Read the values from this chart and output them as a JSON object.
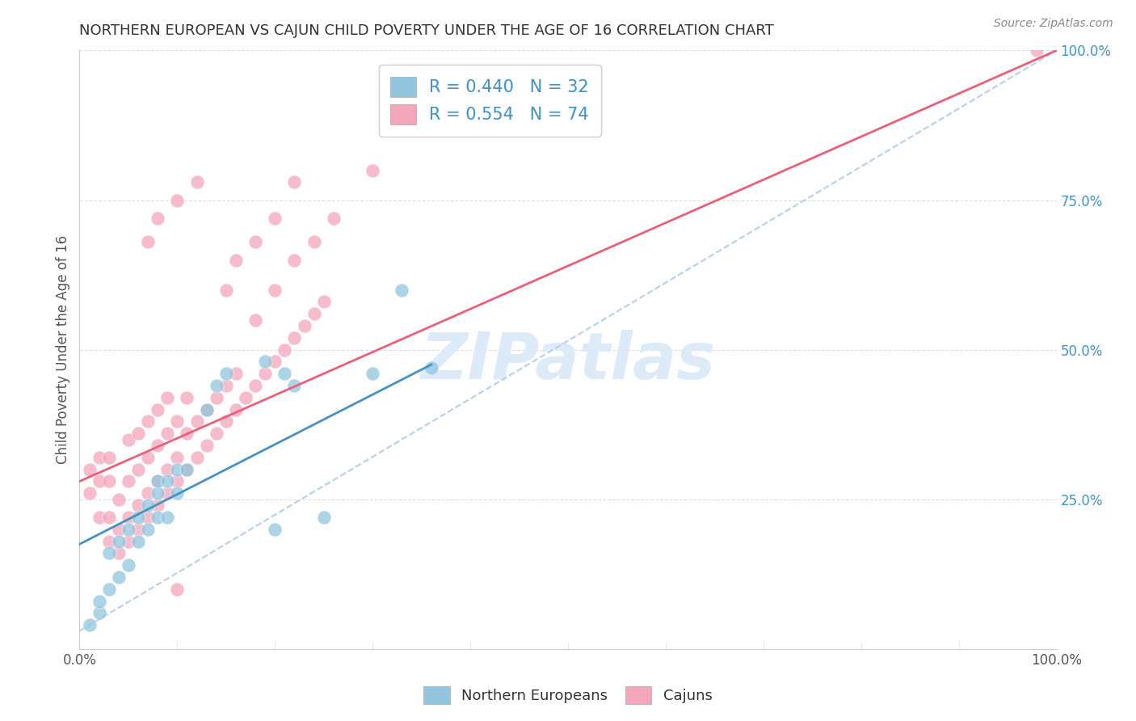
{
  "title": "NORTHERN EUROPEAN VS CAJUN CHILD POVERTY UNDER THE AGE OF 16 CORRELATION CHART",
  "source": "Source: ZipAtlas.com",
  "ylabel": "Child Poverty Under the Age of 16",
  "xlim": [
    0,
    1
  ],
  "ylim": [
    0,
    1
  ],
  "ytick_positions": [
    0.25,
    0.5,
    0.75,
    1.0
  ],
  "blue_R": 0.44,
  "blue_N": 32,
  "pink_R": 0.554,
  "pink_N": 74,
  "blue_color": "#92c5de",
  "pink_color": "#f4a6bb",
  "blue_line_color": "#4393c3",
  "pink_line_color": "#e8607a",
  "dashed_line_color": "#b8cfe8",
  "watermark_color": "#ddeaf8",
  "title_color": "#333333",
  "legend_text_color": "#4393c3",
  "right_label_color": "#4393c3",
  "grid_color": "#dddddd",
  "blue_scatter_x": [
    0.01,
    0.02,
    0.02,
    0.03,
    0.03,
    0.04,
    0.04,
    0.05,
    0.05,
    0.06,
    0.06,
    0.07,
    0.07,
    0.08,
    0.08,
    0.08,
    0.09,
    0.09,
    0.1,
    0.1,
    0.11,
    0.13,
    0.14,
    0.15,
    0.19,
    0.2,
    0.21,
    0.22,
    0.25,
    0.3,
    0.33,
    0.36
  ],
  "blue_scatter_y": [
    0.04,
    0.06,
    0.08,
    0.1,
    0.16,
    0.12,
    0.18,
    0.14,
    0.2,
    0.18,
    0.22,
    0.2,
    0.24,
    0.22,
    0.26,
    0.28,
    0.22,
    0.28,
    0.26,
    0.3,
    0.3,
    0.4,
    0.44,
    0.46,
    0.48,
    0.2,
    0.46,
    0.44,
    0.22,
    0.46,
    0.6,
    0.47
  ],
  "pink_scatter_x": [
    0.01,
    0.01,
    0.02,
    0.02,
    0.02,
    0.03,
    0.03,
    0.03,
    0.03,
    0.04,
    0.04,
    0.04,
    0.05,
    0.05,
    0.05,
    0.05,
    0.06,
    0.06,
    0.06,
    0.06,
    0.07,
    0.07,
    0.07,
    0.07,
    0.08,
    0.08,
    0.08,
    0.08,
    0.09,
    0.09,
    0.09,
    0.09,
    0.1,
    0.1,
    0.1,
    0.11,
    0.11,
    0.11,
    0.12,
    0.12,
    0.13,
    0.13,
    0.14,
    0.14,
    0.15,
    0.15,
    0.16,
    0.16,
    0.17,
    0.18,
    0.19,
    0.2,
    0.21,
    0.22,
    0.23,
    0.24,
    0.25,
    0.15,
    0.16,
    0.18,
    0.2,
    0.22,
    0.07,
    0.08,
    0.1,
    0.12,
    0.18,
    0.2,
    0.22,
    0.24,
    0.26,
    0.3,
    0.98,
    0.1
  ],
  "pink_scatter_y": [
    0.26,
    0.3,
    0.22,
    0.28,
    0.32,
    0.18,
    0.22,
    0.28,
    0.32,
    0.16,
    0.2,
    0.25,
    0.18,
    0.22,
    0.28,
    0.35,
    0.2,
    0.24,
    0.3,
    0.36,
    0.22,
    0.26,
    0.32,
    0.38,
    0.24,
    0.28,
    0.34,
    0.4,
    0.26,
    0.3,
    0.36,
    0.42,
    0.28,
    0.32,
    0.38,
    0.3,
    0.36,
    0.42,
    0.32,
    0.38,
    0.34,
    0.4,
    0.36,
    0.42,
    0.38,
    0.44,
    0.4,
    0.46,
    0.42,
    0.44,
    0.46,
    0.48,
    0.5,
    0.52,
    0.54,
    0.56,
    0.58,
    0.6,
    0.65,
    0.68,
    0.72,
    0.78,
    0.68,
    0.72,
    0.75,
    0.78,
    0.55,
    0.6,
    0.65,
    0.68,
    0.72,
    0.8,
    1.0,
    0.1
  ],
  "blue_trend_x": [
    0.0,
    0.36
  ],
  "blue_trend_y": [
    0.175,
    0.475
  ],
  "pink_trend_x": [
    0.0,
    1.0
  ],
  "pink_trend_y": [
    0.28,
    1.0
  ],
  "dashed_trend_x": [
    0.0,
    1.0
  ],
  "dashed_trend_y": [
    0.03,
    1.0
  ]
}
